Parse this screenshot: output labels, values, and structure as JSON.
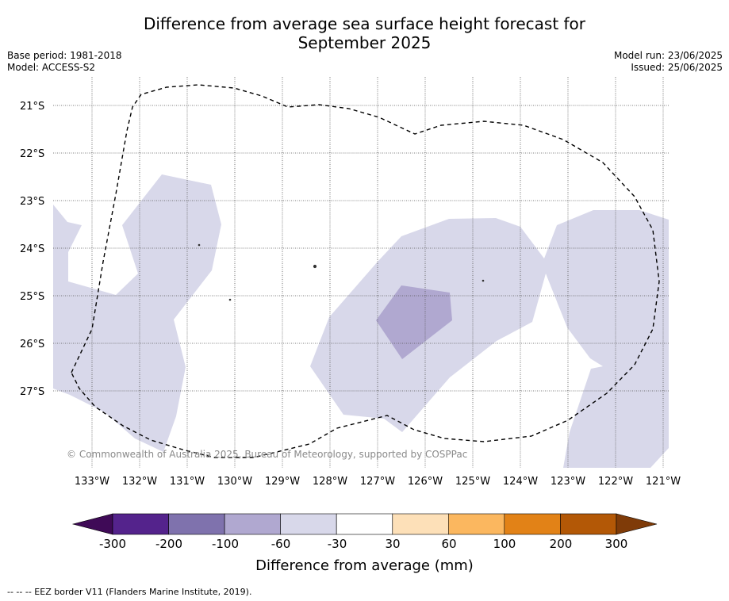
{
  "title": {
    "line1": "Difference from average sea surface height forecast for",
    "line2": "September 2025"
  },
  "meta": {
    "base_period": "Base period: 1981-2018",
    "model": "Model: ACCESS-S2",
    "model_run": "Model run: 23/06/2025",
    "issued": "Issued: 25/06/2025"
  },
  "map": {
    "latitudes": [
      "21°S",
      "22°S",
      "23°S",
      "24°S",
      "25°S",
      "26°S",
      "27°S"
    ],
    "longitudes": [
      "133°W",
      "132°W",
      "131°W",
      "130°W",
      "129°W",
      "128°W",
      "127°W",
      "126°W",
      "125°W",
      "124°W",
      "123°W",
      "122°W",
      "121°W"
    ],
    "copyright": "© Commonwealth of Australia 2025, Bureau of Meteorology, supported by COSPPac",
    "colors": {
      "light_lavender": "#d8d8ea",
      "medium_lavender": "#b0a8d0",
      "gridline": "#555555"
    }
  },
  "colorbar": {
    "ticks": [
      "-300",
      "-200",
      "-100",
      "-60",
      "-30",
      "30",
      "60",
      "100",
      "200",
      "300"
    ],
    "colors": [
      "#3f0a57",
      "#54238c",
      "#7f72ad",
      "#b0a8d0",
      "#d8d8ea",
      "#ffffff",
      "#fde0b8",
      "#fbb75f",
      "#e28217",
      "#b35806",
      "#7f3b08"
    ],
    "label": "Difference from average (mm)"
  },
  "footnote": "--  --  -- EEZ border V11 (Flanders Marine Institute, 2019)."
}
